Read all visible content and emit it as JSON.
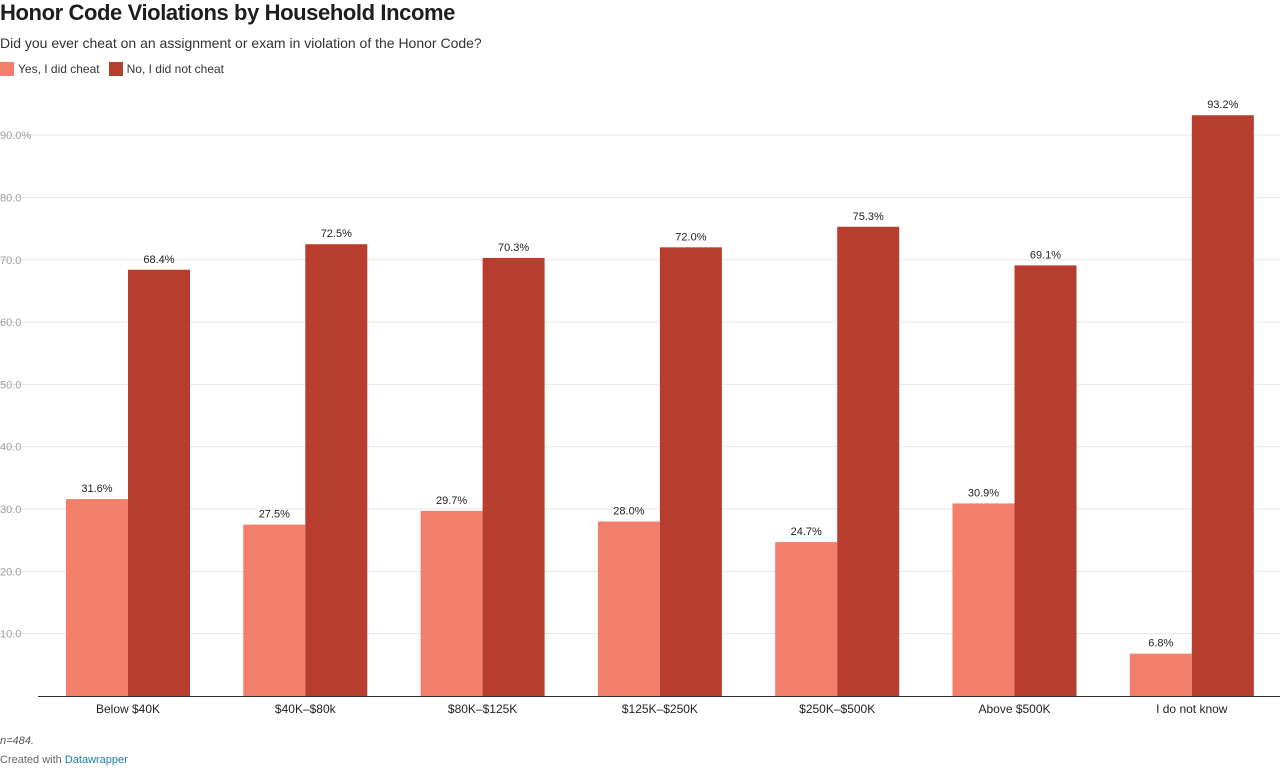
{
  "header": {
    "title": "Honor Code Violations by Household Income",
    "subtitle": "Did you ever cheat on an assignment or exam in violation of the Honor Code?"
  },
  "footer": {
    "note": "n=484.",
    "credit_prefix": "Created with",
    "credit_link": "Datawrapper"
  },
  "colors": {
    "yes": "#f27e6c",
    "no": "#b73e2e",
    "grid": "#e6e6e6",
    "axis": "#333333",
    "tick": "#a0a0a0"
  },
  "chart_data": {
    "type": "bar",
    "title": "Honor Code Violations by Household Income",
    "xlabel": "",
    "ylabel": "",
    "ylim": [
      0,
      95
    ],
    "grid": true,
    "legend_position": "top-left",
    "yticks": [
      10,
      20,
      30,
      40,
      50,
      60,
      70,
      80,
      90
    ],
    "ytick_labels": [
      "10.0",
      "20.0",
      "30.0",
      "40.0",
      "50.0",
      "60.0",
      "70.0",
      "80.0",
      "90.0%"
    ],
    "categories": [
      "Below $40K",
      "$40K–$80k",
      "$80K–$125K",
      "$125K–$250K",
      "$250K–$500K",
      "Above $500K",
      "I do not know"
    ],
    "series": [
      {
        "name": "Yes, I did cheat",
        "values": [
          31.6,
          27.5,
          29.7,
          28.0,
          24.7,
          30.9,
          6.8
        ],
        "labels": [
          "31.6%",
          "27.5%",
          "29.7%",
          "28.0%",
          "24.7%",
          "30.9%",
          "6.8%"
        ]
      },
      {
        "name": "No, I did not cheat",
        "values": [
          68.4,
          72.5,
          70.3,
          72.0,
          75.3,
          69.1,
          93.2
        ],
        "labels": [
          "68.4%",
          "72.5%",
          "70.3%",
          "72.0%",
          "75.3%",
          "69.1%",
          "93.2%"
        ]
      }
    ]
  }
}
